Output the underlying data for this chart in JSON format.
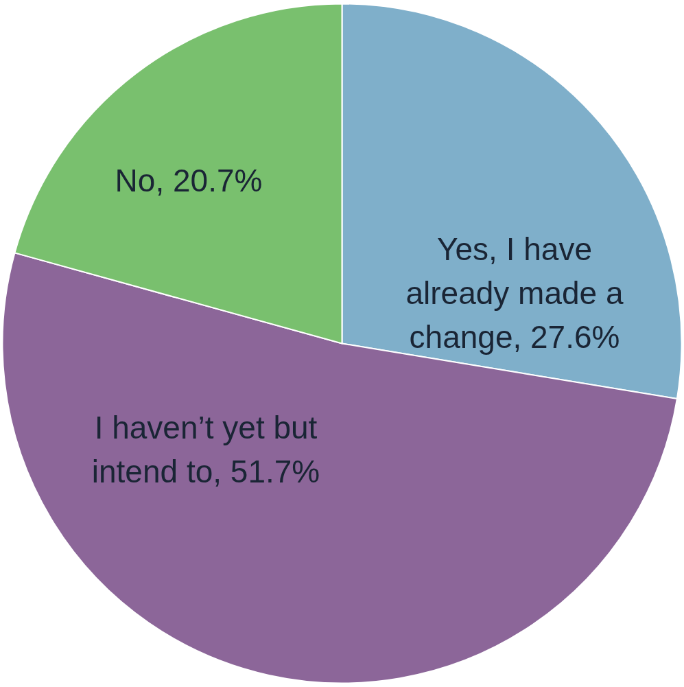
{
  "chart_data": {
    "type": "pie",
    "categories": [
      "Yes, I have already made a change",
      "I haven’t yet but intend to",
      "No"
    ],
    "values": [
      27.6,
      51.7,
      20.7
    ],
    "value_labels": [
      "27.6%",
      "51.7%",
      "20.7%"
    ],
    "colors": [
      "#7fafca",
      "#8c6699",
      "#79c06e"
    ]
  }
}
